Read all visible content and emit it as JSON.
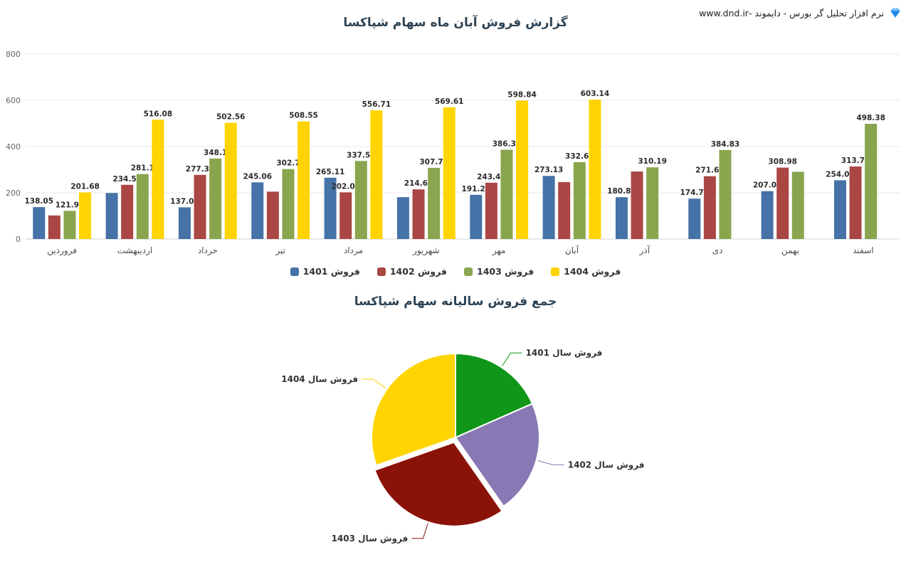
{
  "header": {
    "brand_text": "نرم افزار تحلیل گر بورس - دایموند -www.dnd.ir"
  },
  "chart_data": [
    {
      "type": "bar",
      "title": "گزارش فروش آبان ماه سهام شپاکسا",
      "categories": [
        "فروردین",
        "اردیبهشت",
        "خرداد",
        "تیر",
        "مرداد",
        "شهریور",
        "مهر",
        "آبان",
        "آذر",
        "دی",
        "بهمن",
        "اسفند"
      ],
      "ylim": [
        0,
        800
      ],
      "yticks": [
        0,
        200,
        400,
        600,
        800
      ],
      "grid": true,
      "legend_position": "bottom",
      "series": [
        {
          "year": "1401",
          "name": "فروش 1401",
          "color": "#4572a7",
          "values": [
            138.05,
            199,
            137.06,
            245.06,
            265.11,
            181,
            191.27,
            273.13,
            180.88,
            174.71,
            207.07,
            254.03
          ],
          "labels": [
            "138.05",
            "",
            "137.06",
            "245.06",
            "265.11",
            "",
            "191.27",
            "273.13",
            "180.88",
            "174.71",
            "207.07",
            "254.03"
          ]
        },
        {
          "year": "1402",
          "name": "فروش 1402",
          "color": "#aa4643",
          "values": [
            102,
            234.53,
            277.37,
            205,
            202.02,
            214.68,
            243.45,
            246,
            292,
            271.64,
            308.98,
            313.76
          ],
          "labels": [
            "",
            "234.53",
            "277.37",
            "",
            "202.02",
            "214.68",
            "243.45",
            "",
            "",
            "271.64",
            "308.98",
            "313.76"
          ]
        },
        {
          "year": "1403",
          "name": "فروش 1403",
          "color": "#89a54e",
          "values": [
            121.93,
            281.1,
            348.1,
            302.7,
            337.55,
            307.75,
            386.32,
            332.64,
            310.19,
            384.83,
            291,
            498.38
          ],
          "labels": [
            "121.93",
            "281.1",
            "348.1",
            "302.7",
            "337.55",
            "307.75",
            "386.32",
            "332.64",
            "310.19",
            "384.83",
            "",
            "498.38"
          ]
        },
        {
          "year": "1404",
          "name": "فروش 1404",
          "color": "#ffd400",
          "values": [
            201.68,
            516.08,
            502.56,
            508.55,
            556.71,
            569.61,
            598.84,
            603.14,
            null,
            null,
            null,
            null
          ],
          "labels": [
            "201.68",
            "516.08",
            "502.56",
            "508.55",
            "556.71",
            "569.61",
            "598.84",
            "603.14",
            "",
            "",
            "",
            ""
          ]
        }
      ]
    },
    {
      "type": "pie",
      "title": "جمع فروش سالیانه سهام شپاکسا",
      "slices": [
        {
          "year": "1401",
          "label": "فروش سال 1401",
          "color": "#109618",
          "percent": 18.4,
          "explode": 0
        },
        {
          "year": "1402",
          "label": "فروش سال 1402",
          "color": "#8878b4",
          "percent": 21.9,
          "explode": 0
        },
        {
          "year": "1403",
          "label": "فروش سال 1403",
          "color": "#8b1207",
          "percent": 29.3,
          "explode": 7
        },
        {
          "year": "1404",
          "label": "فروش سال 1404",
          "color": "#ffd400",
          "percent": 30.4,
          "explode": 0
        }
      ]
    }
  ]
}
